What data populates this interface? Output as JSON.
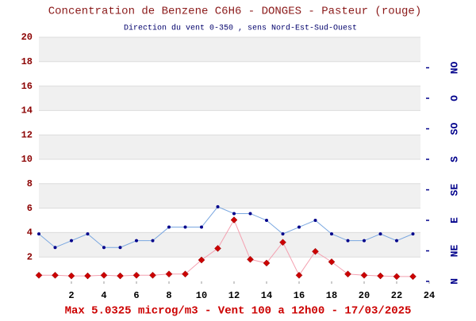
{
  "chart_data": {
    "type": "line",
    "title": "Concentration de Benzene C6H6  -   DONGES - Pasteur (rouge)",
    "subtitle": "Direction du vent 0-350 , sens Nord-Est-Sud-Ouest",
    "footer": "Max 5.0325 microg/m3 - Vent 100  a 12h00 - 17/03/2025",
    "x": [
      0,
      1,
      2,
      3,
      4,
      5,
      6,
      7,
      8,
      9,
      10,
      11,
      12,
      13,
      14,
      15,
      16,
      17,
      18,
      19,
      20,
      21,
      22,
      23
    ],
    "xlim": [
      0,
      24
    ],
    "xticks": [
      2,
      4,
      6,
      8,
      10,
      12,
      14,
      16,
      18,
      20,
      22,
      24
    ],
    "ylim": [
      0,
      20
    ],
    "yticks": [
      2,
      4,
      6,
      8,
      10,
      12,
      14,
      16,
      18,
      20
    ],
    "y2lim": [
      0,
      360
    ],
    "y2ticks": [
      {
        "value": 0,
        "label": "N"
      },
      {
        "value": 45,
        "label": "NE"
      },
      {
        "value": 90,
        "label": "E"
      },
      {
        "value": 135,
        "label": "SE"
      },
      {
        "value": 180,
        "label": "S"
      },
      {
        "value": 225,
        "label": "SO"
      },
      {
        "value": 270,
        "label": "O"
      },
      {
        "value": 315,
        "label": "NO"
      }
    ],
    "bands": true,
    "series": [
      {
        "name": "Benzene",
        "color": "#cc0000",
        "line_color": "#f4a0b0",
        "marker": "diamond",
        "values": [
          0.5,
          0.5,
          0.45,
          0.45,
          0.5,
          0.45,
          0.5,
          0.5,
          0.6,
          0.6,
          1.75,
          2.7,
          5.03,
          1.8,
          1.5,
          3.2,
          0.5,
          2.45,
          1.6,
          0.6,
          0.5,
          0.45,
          0.4,
          0.4
        ]
      },
      {
        "name": "Vent",
        "color": "#00008b",
        "line_color": "#7aa7e0",
        "marker": "dot",
        "axis": "y2",
        "values": [
          70,
          50,
          60,
          70,
          50,
          50,
          60,
          60,
          80,
          80,
          80,
          110,
          100,
          100,
          90,
          70,
          80,
          90,
          70,
          60,
          60,
          70,
          60,
          70
        ]
      }
    ]
  }
}
